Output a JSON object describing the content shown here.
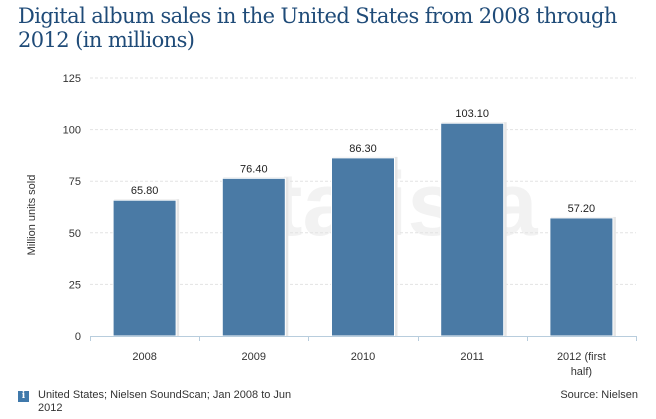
{
  "chart_data": {
    "type": "bar",
    "title": "Digital album sales in the United States from 2008 through 2012 (in millions)",
    "xlabel": "",
    "ylabel": "Million units sold",
    "categories": [
      "2008",
      "2009",
      "2010",
      "2011",
      "2012 (first half)"
    ],
    "category_lines": [
      [
        "2008"
      ],
      [
        "2009"
      ],
      [
        "2010"
      ],
      [
        "2011"
      ],
      [
        "2012 (first",
        "half)"
      ]
    ],
    "values": [
      65.8,
      76.4,
      86.3,
      103.1,
      57.2
    ],
    "value_labels": [
      "65.80",
      "76.40",
      "86.30",
      "103.10",
      "57.20"
    ],
    "ylim": [
      0,
      125
    ],
    "yticks": [
      0,
      25,
      50,
      75,
      100,
      125
    ],
    "grid": true,
    "bar_color": "#4a7aa5",
    "legend": "none"
  },
  "footer": {
    "info_icon": "i",
    "note": "United States; Nielsen SoundScan; Jan 2008 to Jun 2012",
    "source": "Source: Nielsen"
  },
  "watermark": "statista"
}
